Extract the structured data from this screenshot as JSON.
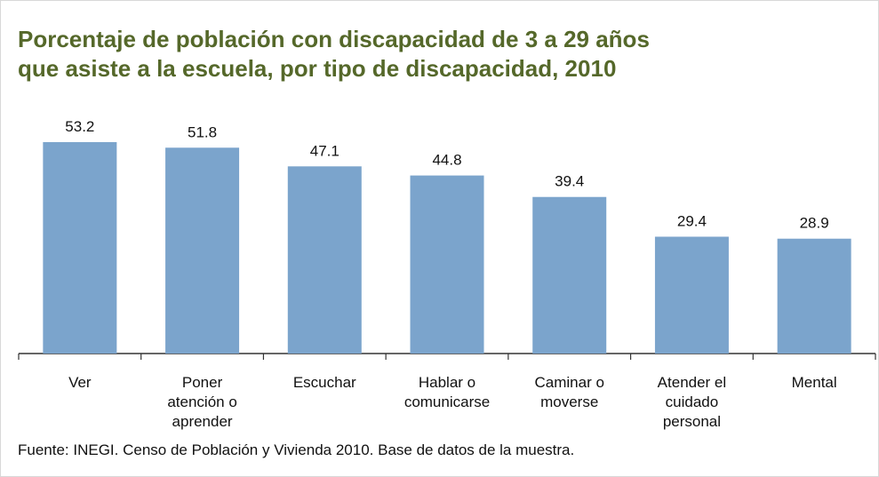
{
  "chart_data": {
    "type": "bar",
    "title": "Porcentaje de población con discapacidad de 3 a 29 años\nque asiste a la escuela, por tipo de discapacidad, 2010",
    "categories": [
      "Ver",
      "Poner\natención o\naprender",
      "Escuchar",
      "Hablar o\ncomunicarse",
      "Caminar o\nmoverse",
      "Atender el\ncuidado\npersonal",
      "Mental"
    ],
    "values": [
      53.2,
      51.8,
      47.1,
      44.8,
      39.4,
      29.4,
      28.9
    ],
    "color": "#7ba4cc",
    "source": "Fuente: INEGI. Censo de Población y Vivienda 2010. Base de datos de la muestra."
  }
}
